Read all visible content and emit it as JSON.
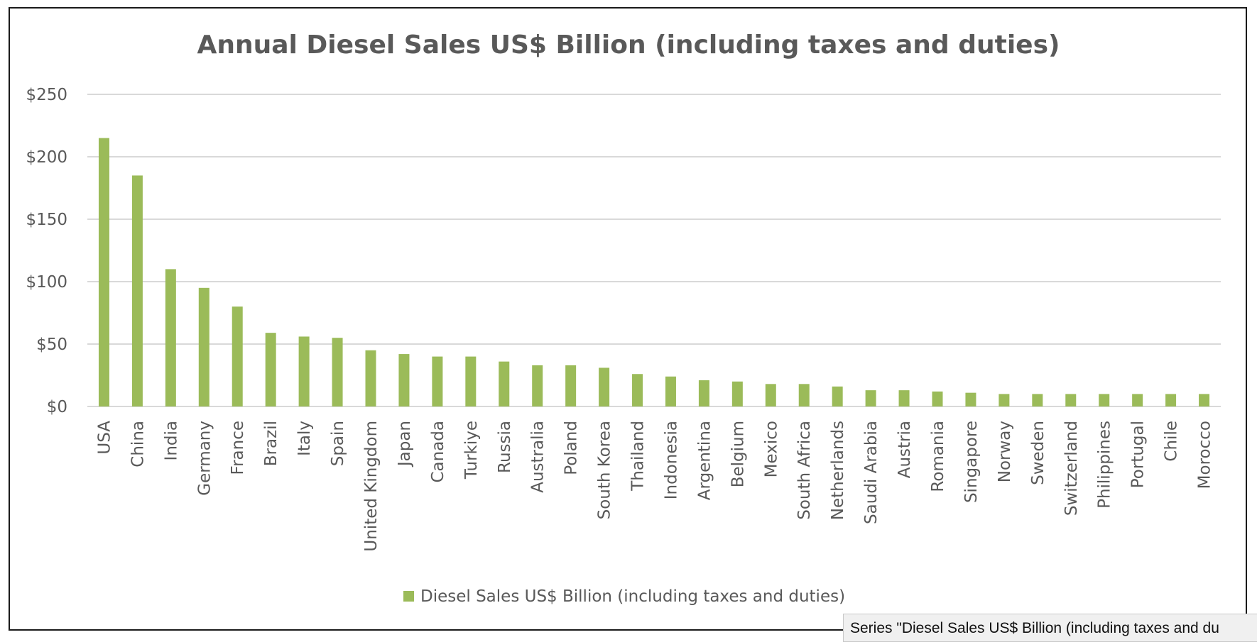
{
  "chart_data": {
    "type": "bar",
    "title": "Annual Diesel Sales US$ Billion (including taxes and duties)",
    "xlabel": "",
    "ylabel": "",
    "ylim": [
      0,
      250
    ],
    "yticks": [
      0,
      50,
      100,
      150,
      200,
      250
    ],
    "ytick_labels": [
      "$0",
      "$50",
      "$100",
      "$150",
      "$200",
      "$250"
    ],
    "grid": true,
    "legend_position": "bottom",
    "categories": [
      "USA",
      "China",
      "India",
      "Germany",
      "France",
      "Brazil",
      "Italy",
      "Spain",
      "United Kingdom",
      "Japan",
      "Canada",
      "Turkiye",
      "Russia",
      "Australia",
      "Poland",
      "South Korea",
      "Thailand",
      "Indonesia",
      "Argentina",
      "Belgium",
      "Mexico",
      "South Africa",
      "Netherlands",
      "Saudi Arabia",
      "Austria",
      "Romania",
      "Singapore",
      "Norway",
      "Sweden",
      "Switzerland",
      "Philippines",
      "Portugal",
      "Chile",
      "Morocco"
    ],
    "series": [
      {
        "name": "Diesel Sales US$ Billion (including taxes and duties)",
        "color": "#9bbb59",
        "values": [
          215,
          185,
          110,
          95,
          80,
          59,
          56,
          55,
          45,
          42,
          40,
          40,
          36,
          33,
          33,
          31,
          26,
          24,
          21,
          20,
          18,
          18,
          16,
          13,
          13,
          12,
          11,
          10,
          10,
          10,
          10,
          10,
          10,
          10
        ]
      }
    ]
  },
  "tooltip": {
    "text": "Series \"Diesel Sales US$ Billion (including taxes and du"
  }
}
